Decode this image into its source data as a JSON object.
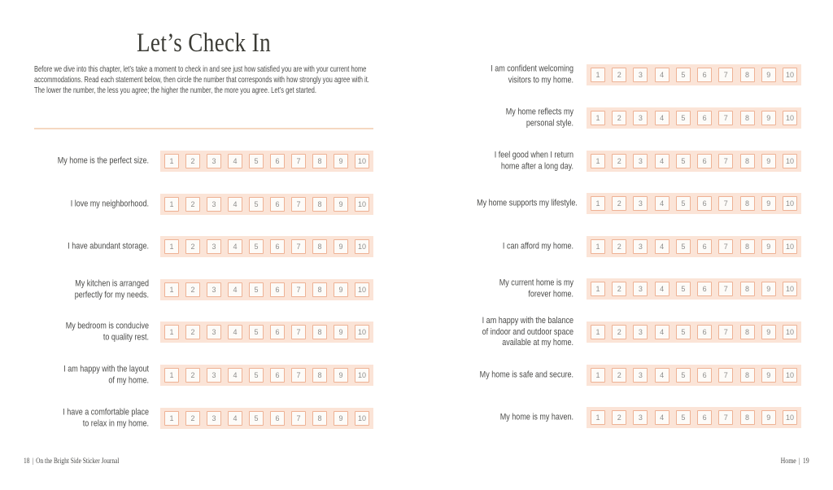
{
  "left_page": {
    "title": "Let’s Check In",
    "intro": "Before we dive into this chapter, let’s take a moment to check in and see just how satisfied you are with your current home accommodations. Read each statement below, then circle the number that corresponds with how strongly you agree with it. The lower the number, the less you agree; the higher the number, the more you agree. Let’s get started.",
    "rows": [
      {
        "lines": [
          "My home is the perfect size."
        ]
      },
      {
        "lines": [
          "I love my neighborhood."
        ]
      },
      {
        "lines": [
          "I have abundant storage."
        ]
      },
      {
        "lines": [
          "My kitchen is arranged",
          "perfectly for my needs."
        ]
      },
      {
        "lines": [
          "My bedroom is conducive",
          "to quality rest."
        ]
      },
      {
        "lines": [
          "I am happy with the layout",
          "of my home."
        ]
      },
      {
        "lines": [
          "I have a comfortable place",
          "to relax in my home."
        ]
      }
    ],
    "footer": {
      "page_number": "18",
      "separator": "|",
      "book_title": "On the Bright Side Sticker Journal"
    }
  },
  "right_page": {
    "rows": [
      {
        "lines": [
          "I am confident welcoming",
          "visitors to my home."
        ]
      },
      {
        "lines": [
          "My home reflects my",
          "personal style."
        ]
      },
      {
        "lines": [
          "I feel good when I return",
          "home after a long day."
        ]
      },
      {
        "lines": [
          "My home supports my lifestyle."
        ]
      },
      {
        "lines": [
          "I can afford my home."
        ]
      },
      {
        "lines": [
          "My current home is my",
          "forever home."
        ]
      },
      {
        "lines": [
          "I am happy with the balance",
          "of indoor and outdoor space",
          "available at my home."
        ]
      },
      {
        "lines": [
          "My home is safe and secure."
        ]
      },
      {
        "lines": [
          "My home is my haven."
        ]
      }
    ],
    "footer": {
      "chapter": "Home",
      "separator": "|",
      "page_number": "19"
    }
  },
  "scale": {
    "numbers": [
      "1",
      "2",
      "3",
      "4",
      "5",
      "6",
      "7",
      "8",
      "9",
      "10"
    ]
  },
  "colors": {
    "strip_bg": "#fbe4d7",
    "box_border": "#eeb295",
    "box_bg": "#fdfbf8",
    "number_text": "#8e8e8c",
    "divider": "#f5d8c1",
    "ink": "#3b3b35",
    "text": "#4b4b49"
  }
}
